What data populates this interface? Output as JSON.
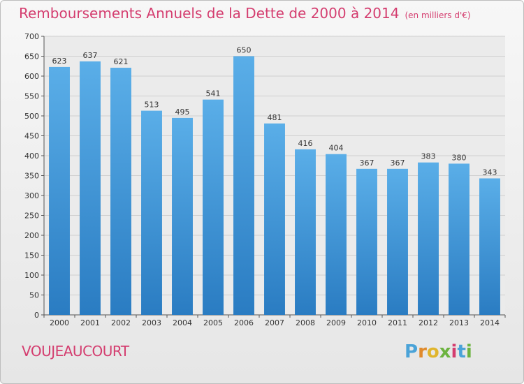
{
  "header": {
    "title": "Remboursements Annuels de la Dette de 2000 à 2014",
    "subtitle": "(en milliers d'€)"
  },
  "footer": {
    "city": "VOUJEAUCOURT",
    "logo_letters": [
      "P",
      "r",
      "o",
      "x",
      "i",
      "t",
      "i"
    ],
    "logo_colors": [
      "#4aa3d8",
      "#e08a2c",
      "#e0b52c",
      "#6cb33f",
      "#d43d6f",
      "#4aa3d8",
      "#6cb33f"
    ]
  },
  "chart_data": {
    "type": "bar",
    "title": "Remboursements Annuels de la Dette de 2000 à 2014",
    "subtitle": "(en milliers d'€)",
    "xlabel": "",
    "ylabel": "",
    "categories": [
      "2000",
      "2001",
      "2002",
      "2003",
      "2004",
      "2005",
      "2006",
      "2007",
      "2008",
      "2009",
      "2010",
      "2011",
      "2012",
      "2013",
      "2014"
    ],
    "values": [
      623,
      637,
      621,
      513,
      495,
      541,
      650,
      481,
      416,
      404,
      367,
      367,
      383,
      380,
      343
    ],
    "ylim": [
      0,
      700
    ],
    "yticks": [
      0,
      50,
      100,
      150,
      200,
      250,
      300,
      350,
      400,
      450,
      500,
      550,
      600,
      650,
      700
    ],
    "grid": true,
    "bar_color_top": "#5aaee8",
    "bar_color_bottom": "#2a7cc2"
  }
}
